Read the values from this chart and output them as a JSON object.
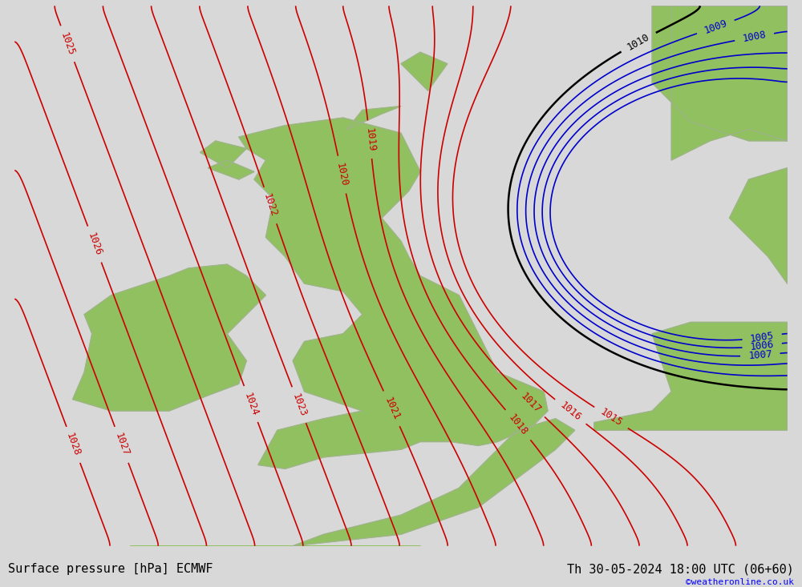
{
  "title_left": "Surface pressure [hPa] ECMWF",
  "title_right": "Th 30-05-2024 18:00 UTC (06+60)",
  "watermark": "©weatheronline.co.uk",
  "bg_color": "#d8d8d8",
  "land_color": "#90c060",
  "sea_color": "#d8d8d8",
  "border_color": "#aaaaaa",
  "fig_width": 10.0,
  "fig_height": 7.33,
  "dpi": 100,
  "xlim": [
    -12,
    8
  ],
  "ylim": [
    48,
    62
  ],
  "red_isobars": [
    1015,
    1016,
    1017,
    1018,
    1019,
    1020,
    1021,
    1022,
    1023,
    1024,
    1025,
    1026,
    1027,
    1028
  ],
  "blue_isobars": [
    1005,
    1006,
    1007,
    1008,
    1009
  ],
  "black_isobars": [
    1010
  ],
  "red_color": "#cc0000",
  "blue_color": "#0000cc",
  "black_color": "#000000",
  "isobar_linewidth": 1.2,
  "label_fontsize": 9
}
